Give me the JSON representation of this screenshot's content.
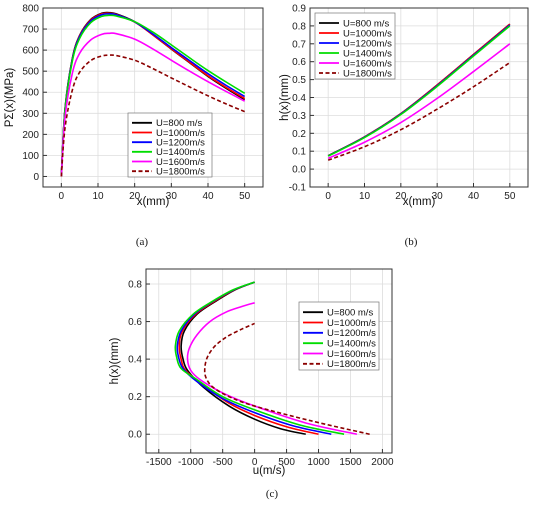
{
  "colors": {
    "U800": "#000000",
    "U1000": "#ff0000",
    "U1200": "#0000ff",
    "U1400": "#00dd00",
    "U1600": "#ff00ff",
    "U1800": "#8b0000"
  },
  "chart_data": [
    {
      "id": "a",
      "type": "line",
      "caption": "(a)",
      "xlabel": "x(mm)",
      "ylabel": "PΣ(x)(MPa)",
      "xlim": [
        -5,
        55
      ],
      "ylim": [
        -50,
        800
      ],
      "xticks": [
        "0",
        "10",
        "20",
        "30",
        "40",
        "50"
      ],
      "yticks": [
        "0",
        "100",
        "200",
        "300",
        "400",
        "500",
        "600",
        "700",
        "800"
      ],
      "grid": true,
      "legend_position": "inside-lower-center",
      "series": [
        {
          "name": "U=800  m/s",
          "color_key": "U800",
          "dash": false,
          "x": [
            0,
            1,
            3,
            5,
            8,
            11,
            13,
            15,
            20,
            25,
            30,
            35,
            40,
            45,
            50
          ],
          "y": [
            0,
            320,
            560,
            670,
            745,
            775,
            778,
            772,
            735,
            672,
            605,
            540,
            475,
            418,
            365
          ]
        },
        {
          "name": "U=1000m/s",
          "color_key": "U1000",
          "dash": false,
          "x": [
            0,
            1,
            3,
            5,
            8,
            11,
            13,
            15,
            20,
            25,
            30,
            35,
            40,
            45,
            50
          ],
          "y": [
            0,
            318,
            558,
            668,
            742,
            772,
            775,
            770,
            733,
            672,
            606,
            542,
            478,
            422,
            370
          ]
        },
        {
          "name": "U=1200m/s",
          "color_key": "U1200",
          "dash": false,
          "x": [
            0,
            1,
            3,
            5,
            8,
            11,
            13,
            15,
            20,
            25,
            30,
            35,
            40,
            45,
            50
          ],
          "y": [
            0,
            316,
            555,
            664,
            738,
            768,
            772,
            768,
            734,
            676,
            612,
            550,
            488,
            432,
            380
          ]
        },
        {
          "name": "U=1400m/s",
          "color_key": "U1400",
          "dash": false,
          "x": [
            0,
            1,
            3,
            5,
            8,
            11,
            13,
            15,
            20,
            25,
            30,
            35,
            40,
            45,
            50
          ],
          "y": [
            0,
            312,
            548,
            656,
            730,
            760,
            765,
            762,
            735,
            685,
            625,
            563,
            503,
            448,
            395
          ]
        },
        {
          "name": "U=1600m/s",
          "color_key": "U1600",
          "dash": false,
          "x": [
            0,
            1,
            3,
            5,
            8,
            11,
            13,
            15,
            20,
            25,
            30,
            35,
            40,
            45,
            50
          ],
          "y": [
            0,
            280,
            490,
            585,
            648,
            675,
            680,
            678,
            652,
            605,
            552,
            500,
            450,
            403,
            358
          ]
        },
        {
          "name": "U=1800m/s",
          "color_key": "U1800",
          "dash": true,
          "x": [
            0,
            1,
            3,
            5,
            8,
            11,
            13,
            15,
            20,
            25,
            30,
            35,
            40,
            45,
            50
          ],
          "y": [
            0,
            230,
            410,
            495,
            550,
            572,
            576,
            574,
            552,
            512,
            468,
            425,
            383,
            344,
            308
          ]
        }
      ]
    },
    {
      "id": "b",
      "type": "line",
      "caption": "(b)",
      "xlabel": "x(mm)",
      "ylabel": "h(x)(mm)",
      "xlim": [
        -5,
        55
      ],
      "ylim": [
        -0.1,
        0.9
      ],
      "xticks": [
        "0",
        "10",
        "20",
        "30",
        "40",
        "50"
      ],
      "yticks": [
        "-0.1",
        "0.0",
        "0.1",
        "0.2",
        "0.3",
        "0.4",
        "0.5",
        "0.6",
        "0.7",
        "0.8",
        "0.9"
      ],
      "grid": true,
      "legend_position": "top-left",
      "series": [
        {
          "name": "U=800  m/s",
          "color_key": "U800",
          "dash": false,
          "x": [
            0,
            10,
            20,
            30,
            40,
            50
          ],
          "y": [
            0.075,
            0.18,
            0.31,
            0.47,
            0.64,
            0.81
          ]
        },
        {
          "name": "U=1000m/s",
          "color_key": "U1000",
          "dash": false,
          "x": [
            0,
            10,
            20,
            30,
            40,
            50
          ],
          "y": [
            0.075,
            0.18,
            0.31,
            0.47,
            0.64,
            0.81
          ]
        },
        {
          "name": "U=1200m/s",
          "color_key": "U1200",
          "dash": false,
          "x": [
            0,
            10,
            20,
            30,
            40,
            50
          ],
          "y": [
            0.074,
            0.178,
            0.308,
            0.466,
            0.636,
            0.805
          ]
        },
        {
          "name": "U=1400m/s",
          "color_key": "U1400",
          "dash": false,
          "x": [
            0,
            10,
            20,
            30,
            40,
            50
          ],
          "y": [
            0.073,
            0.176,
            0.305,
            0.462,
            0.632,
            0.8
          ]
        },
        {
          "name": "U=1600m/s",
          "color_key": "U1600",
          "dash": false,
          "x": [
            0,
            10,
            20,
            30,
            40,
            50
          ],
          "y": [
            0.06,
            0.15,
            0.26,
            0.395,
            0.545,
            0.7
          ]
        },
        {
          "name": "U=1800m/s",
          "color_key": "U1800",
          "dash": true,
          "x": [
            0,
            10,
            20,
            30,
            40,
            50
          ],
          "y": [
            0.05,
            0.125,
            0.22,
            0.335,
            0.46,
            0.595
          ]
        }
      ]
    },
    {
      "id": "c",
      "type": "line",
      "caption": "(c)",
      "xlabel": "u(m/s)",
      "ylabel": "h(x)(mm)",
      "xlim": [
        -1700,
        2150
      ],
      "ylim": [
        -0.1,
        0.88
      ],
      "xticks": [
        "-1500",
        "-1000",
        "-500",
        "0",
        "500",
        "1000",
        "1500",
        "2000"
      ],
      "yticks": [
        "0.0",
        "0.2",
        "0.4",
        "0.6",
        "0.8"
      ],
      "grid": true,
      "legend_position": "right",
      "series": [
        {
          "name": "U=800  m/s",
          "color_key": "U800",
          "dash": false,
          "x": [
            800,
            400,
            0,
            -400,
            -800,
            -1050,
            -1120,
            -1150,
            -1100,
            -900,
            -600,
            -300,
            0
          ],
          "y": [
            0,
            0.03,
            0.08,
            0.15,
            0.25,
            0.34,
            0.4,
            0.47,
            0.55,
            0.64,
            0.71,
            0.77,
            0.81
          ]
        },
        {
          "name": "U=1000m/s",
          "color_key": "U1000",
          "dash": false,
          "x": [
            1000,
            500,
            0,
            -400,
            -800,
            -1080,
            -1150,
            -1180,
            -1130,
            -920,
            -620,
            -310,
            0
          ],
          "y": [
            0,
            0.04,
            0.1,
            0.165,
            0.26,
            0.34,
            0.4,
            0.47,
            0.55,
            0.64,
            0.71,
            0.77,
            0.81
          ]
        },
        {
          "name": "U=1200m/s",
          "color_key": "U1200",
          "dash": false,
          "x": [
            1200,
            600,
            0,
            -500,
            -900,
            -1120,
            -1190,
            -1210,
            -1150,
            -940,
            -640,
            -320,
            0
          ],
          "y": [
            0,
            0.045,
            0.115,
            0.19,
            0.28,
            0.35,
            0.41,
            0.47,
            0.55,
            0.64,
            0.71,
            0.77,
            0.81
          ]
        },
        {
          "name": "U=1400m/s",
          "color_key": "U1400",
          "dash": false,
          "x": [
            1400,
            700,
            0,
            -500,
            -900,
            -1150,
            -1220,
            -1240,
            -1180,
            -960,
            -650,
            -330,
            0
          ],
          "y": [
            0,
            0.05,
            0.13,
            0.2,
            0.29,
            0.35,
            0.41,
            0.47,
            0.55,
            0.64,
            0.71,
            0.77,
            0.81
          ]
        },
        {
          "name": "U=1600m/s",
          "color_key": "U1600",
          "dash": false,
          "x": [
            1600,
            800,
            0,
            -500,
            -850,
            -1000,
            -1050,
            -1020,
            -900,
            -700,
            -450,
            -200,
            0
          ],
          "y": [
            0,
            0.06,
            0.15,
            0.22,
            0.29,
            0.34,
            0.4,
            0.46,
            0.53,
            0.6,
            0.65,
            0.68,
            0.7
          ]
        },
        {
          "name": "U=1800m/s",
          "color_key": "U1800",
          "dash": true,
          "x": [
            1800,
            900,
            0,
            -400,
            -650,
            -760,
            -780,
            -740,
            -620,
            -430,
            -200,
            0
          ],
          "y": [
            0,
            0.07,
            0.15,
            0.2,
            0.25,
            0.3,
            0.35,
            0.41,
            0.47,
            0.52,
            0.56,
            0.59
          ]
        }
      ]
    }
  ]
}
